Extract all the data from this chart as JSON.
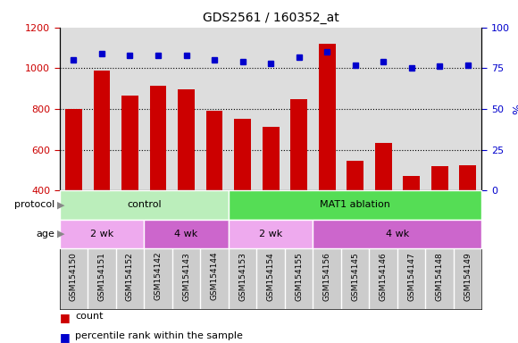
{
  "title": "GDS2561 / 160352_at",
  "samples": [
    "GSM154150",
    "GSM154151",
    "GSM154152",
    "GSM154142",
    "GSM154143",
    "GSM154144",
    "GSM154153",
    "GSM154154",
    "GSM154155",
    "GSM154156",
    "GSM154145",
    "GSM154146",
    "GSM154147",
    "GSM154148",
    "GSM154149"
  ],
  "counts": [
    800,
    990,
    865,
    915,
    895,
    790,
    750,
    710,
    850,
    1120,
    545,
    635,
    470,
    520,
    525
  ],
  "percentile": [
    80,
    84,
    83,
    83,
    83,
    80,
    79,
    78,
    82,
    85,
    77,
    79,
    75,
    76,
    77
  ],
  "ylim_left": [
    400,
    1200
  ],
  "ylim_right": [
    0,
    100
  ],
  "yticks_left": [
    400,
    600,
    800,
    1000,
    1200
  ],
  "yticks_right": [
    0,
    25,
    50,
    75,
    100
  ],
  "bar_color": "#cc0000",
  "dot_color": "#0000cc",
  "protocol_groups": [
    {
      "label": "control",
      "start": 0,
      "end": 6,
      "color": "#bbeebb"
    },
    {
      "label": "MAT1 ablation",
      "start": 6,
      "end": 15,
      "color": "#55dd55"
    }
  ],
  "age_groups": [
    {
      "label": "2 wk",
      "start": 0,
      "end": 3,
      "color": "#eeaaee"
    },
    {
      "label": "4 wk",
      "start": 3,
      "end": 6,
      "color": "#cc66cc"
    },
    {
      "label": "2 wk",
      "start": 6,
      "end": 9,
      "color": "#eeaaee"
    },
    {
      "label": "4 wk",
      "start": 9,
      "end": 15,
      "color": "#cc66cc"
    }
  ],
  "protocol_label": "protocol",
  "age_label": "age",
  "legend_count_label": "count",
  "legend_pct_label": "percentile rank within the sample",
  "right_axis_pct_label": "%",
  "plot_bg_color": "#dddddd",
  "label_band_color": "#cccccc"
}
